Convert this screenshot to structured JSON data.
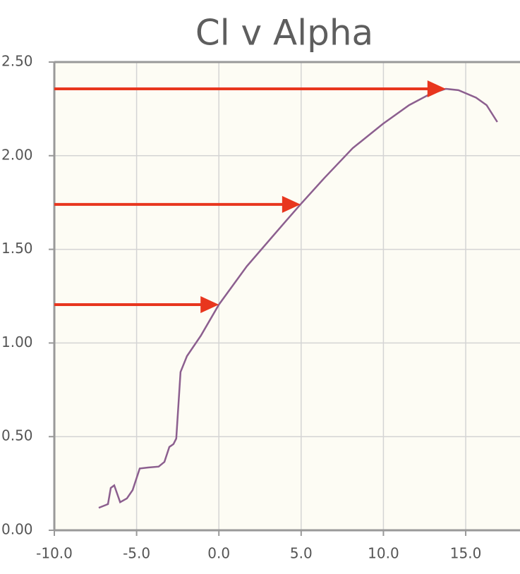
{
  "chart_data": {
    "type": "line",
    "title": "Cl v Alpha",
    "x": [
      -7.3,
      -6.87,
      -6.74,
      -6.57,
      -6.36,
      -6.0,
      -5.59,
      -5.24,
      -4.81,
      -4.3,
      -3.66,
      -3.31,
      -3.01,
      -2.76,
      -2.59,
      -2.33,
      -1.94,
      -1.09,
      0,
      1.7,
      4.06,
      4.96,
      6.4,
      8.13,
      9.97,
      11.56,
      12.85,
      13.79,
      14.56,
      15.63,
      16.27,
      16.92
    ],
    "series": [
      {
        "color": "#8c5f8f",
        "values": [
          0.12,
          0.135,
          0.14,
          0.226,
          0.24,
          0.15,
          0.17,
          0.215,
          0.33,
          0.335,
          0.34,
          0.365,
          0.445,
          0.46,
          0.49,
          0.845,
          0.93,
          1.04,
          1.205,
          1.41,
          1.65,
          1.74,
          1.88,
          2.04,
          2.17,
          2.27,
          2.33,
          2.357,
          2.35,
          2.31,
          2.27,
          2.18
        ]
      }
    ],
    "arrows": {
      "color": "#e8361e",
      "x": [
        13.79,
        4.96,
        0
      ],
      "y": [
        2.357,
        1.74,
        1.205
      ]
    },
    "xlim": [
      -10,
      18.3
    ],
    "ylim": [
      0,
      2.5
    ],
    "xticks": [
      {
        "value": -10,
        "label": "-10.0"
      },
      {
        "value": -5,
        "label": "-5.0"
      },
      {
        "value": 0,
        "label": "0.0"
      },
      {
        "value": 5,
        "label": "5.0"
      },
      {
        "value": 10,
        "label": "10.0"
      },
      {
        "value": 15,
        "label": "15.0"
      }
    ],
    "yticks": [
      {
        "value": 0,
        "label": "0.00"
      },
      {
        "value": 0.5,
        "label": "0.50"
      },
      {
        "value": 1,
        "label": "1.00"
      },
      {
        "value": 1.5,
        "label": "1.50"
      },
      {
        "value": 2,
        "label": "2.00"
      },
      {
        "value": 2.5,
        "label": "2.50"
      }
    ],
    "grid": true
  }
}
